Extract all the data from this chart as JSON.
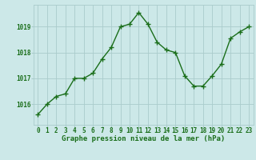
{
  "x": [
    0,
    1,
    2,
    3,
    4,
    5,
    6,
    7,
    8,
    9,
    10,
    11,
    12,
    13,
    14,
    15,
    16,
    17,
    18,
    19,
    20,
    21,
    22,
    23
  ],
  "y": [
    1015.6,
    1016.0,
    1016.3,
    1016.4,
    1017.0,
    1017.0,
    1017.2,
    1017.75,
    1018.2,
    1019.0,
    1019.1,
    1019.55,
    1019.1,
    1018.4,
    1018.1,
    1018.0,
    1017.1,
    1016.7,
    1016.7,
    1017.1,
    1017.55,
    1018.55,
    1018.8,
    1019.0
  ],
  "line_color": "#1a6e1a",
  "marker": "+",
  "markersize": 4,
  "linewidth": 1.0,
  "bg_color": "#cce8e8",
  "grid_color": "#aacccc",
  "xlabel": "Graphe pression niveau de la mer (hPa)",
  "xlabel_fontsize": 6.5,
  "xlabel_color": "#1a6e1a",
  "tick_color": "#1a6e1a",
  "tick_fontsize": 5.5,
  "yticks": [
    1016,
    1017,
    1018,
    1019
  ],
  "ylim": [
    1015.2,
    1019.85
  ],
  "xlim": [
    -0.5,
    23.5
  ],
  "xticks": [
    0,
    1,
    2,
    3,
    4,
    5,
    6,
    7,
    8,
    9,
    10,
    11,
    12,
    13,
    14,
    15,
    16,
    17,
    18,
    19,
    20,
    21,
    22,
    23
  ]
}
